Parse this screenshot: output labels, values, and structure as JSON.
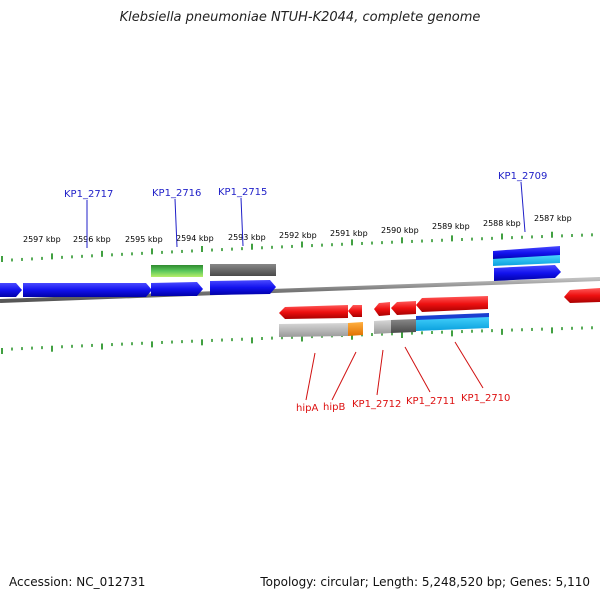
{
  "title": "Klebsiella pneumoniae NTUH-K2044, complete genome",
  "footer": {
    "accession": "Accession: NC_012731",
    "stats": "Topology: circular; Length: 5,248,520 bp; Genes: 5,110"
  },
  "ruler": {
    "labels": [
      "2597 kbp",
      "2596 kbp",
      "2595 kbp",
      "2594 kbp",
      "2593 kbp",
      "2592 kbp",
      "2591 kbp",
      "2590 kbp",
      "2589 kbp",
      "2588 kbp",
      "2587 kbp"
    ]
  },
  "genes": {
    "top_labels": [
      "KP1_2717",
      "KP1_2716",
      "KP1_2715",
      "KP1_2709"
    ],
    "bottom_labels": [
      "hipA",
      "hipB",
      "KP1_2712",
      "KP1_2711",
      "KP1_2710"
    ]
  },
  "colors": {
    "forward_strand": "#1010ee",
    "reverse_strand": "#ee1111",
    "backbone": "#888888",
    "tick": "#118811",
    "top_label": "#1f1fc8",
    "bottom_label": "#d11111"
  }
}
